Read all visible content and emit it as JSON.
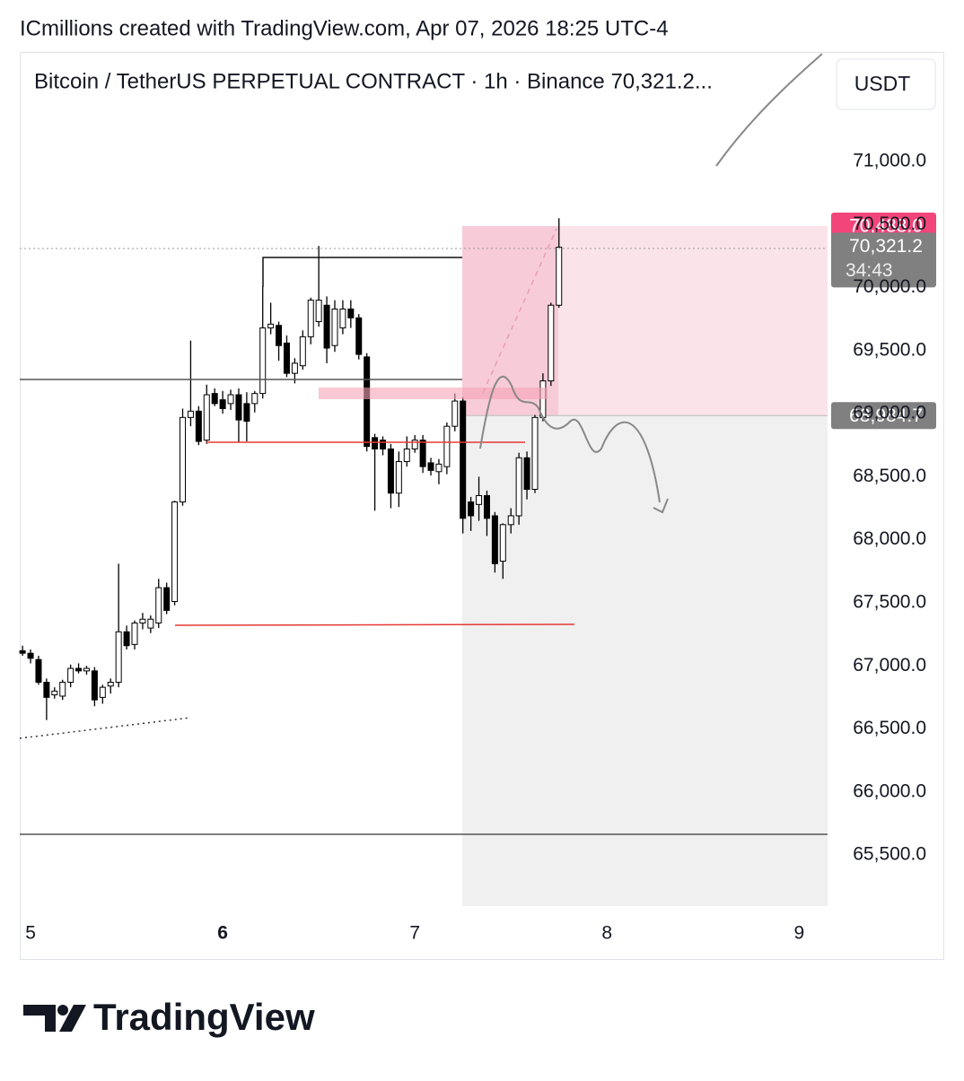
{
  "header": {
    "credit": "ICmillions created with TradingView.com, Apr 07, 2026 18:25 UTC-4",
    "logo": "TradingView"
  },
  "chart_data": {
    "type": "candlestick",
    "title": "Bitcoin / TetherUS PERPETUAL CONTRACT · 1h · Binance  70,321.2...",
    "currency": "USDT",
    "x": [
      -1,
      0,
      1,
      2,
      3,
      4,
      5,
      6,
      7,
      8,
      9,
      10,
      11,
      12,
      13,
      14,
      15,
      16,
      17,
      18,
      19,
      20,
      21,
      22,
      23,
      24,
      25,
      26,
      27,
      28,
      29,
      30,
      31,
      32,
      33,
      34,
      35,
      36,
      37,
      38,
      39,
      40,
      41,
      42,
      43,
      44,
      45,
      46,
      47,
      48,
      49,
      50,
      51,
      52,
      53,
      54,
      55,
      56,
      57,
      58,
      59,
      60,
      61,
      62,
      63,
      64,
      65,
      66
    ],
    "open": [
      67120,
      67100,
      67050,
      66870,
      66770,
      66760,
      66870,
      66980,
      66960,
      66960,
      66750,
      66840,
      66870,
      67270,
      67170,
      67340,
      67300,
      67340,
      67620,
      67510,
      68300,
      68970,
      69020,
      68790,
      69160,
      69110,
      69080,
      69150,
      69080,
      69080,
      69160,
      69680,
      69700,
      69560,
      69320,
      69380,
      69610,
      69730,
      69860,
      69540,
      69680,
      69830,
      69760,
      69450,
      68810,
      68790,
      68720,
      68370,
      68620,
      68720,
      68790,
      68610,
      68540,
      68580,
      68900,
      69100,
      68300,
      68280,
      68350,
      68190,
      67830,
      68120,
      68190,
      68650,
      68400,
      68970,
      69260,
      69860
    ],
    "high": [
      67160,
      67130,
      67080,
      66900,
      66830,
      66890,
      67010,
      67020,
      67000,
      66990,
      66850,
      66900,
      67810,
      67320,
      67360,
      67420,
      67400,
      67690,
      67660,
      68310,
      69040,
      69580,
      69060,
      69230,
      69200,
      69180,
      69190,
      69200,
      69170,
      69180,
      70010,
      69880,
      69730,
      69620,
      69440,
      69660,
      69920,
      70330,
      69930,
      69900,
      69900,
      69900,
      69790,
      69480,
      68840,
      68820,
      68760,
      68700,
      68820,
      68830,
      68830,
      68650,
      68640,
      68930,
      69160,
      69130,
      68340,
      68500,
      68390,
      68220,
      68130,
      68250,
      68690,
      68700,
      68990,
      69320,
      69880,
      70550
    ],
    "low": [
      67080,
      67020,
      66850,
      66570,
      66740,
      66730,
      66830,
      66940,
      66930,
      66680,
      66700,
      66780,
      66830,
      67130,
      67130,
      67290,
      67260,
      67300,
      67410,
      67480,
      68270,
      68900,
      68750,
      68760,
      69060,
      69000,
      69030,
      68770,
      68780,
      69010,
      69120,
      69630,
      69420,
      69290,
      69240,
      69350,
      69550,
      69690,
      69400,
      69490,
      69630,
      69680,
      69430,
      68700,
      68230,
      68670,
      68250,
      68260,
      68580,
      68690,
      68530,
      68510,
      68440,
      68520,
      68860,
      68050,
      68070,
      68150,
      68030,
      67740,
      67690,
      68050,
      68120,
      68320,
      68370,
      68940,
      69220,
      69840
    ],
    "close": [
      67100,
      67060,
      66870,
      66750,
      66800,
      66870,
      66980,
      66960,
      66980,
      66730,
      66830,
      66870,
      67270,
      67160,
      67340,
      67370,
      67370,
      67620,
      67440,
      68300,
      68970,
      69020,
      68780,
      69150,
      69080,
      69040,
      69150,
      68950,
      68940,
      69160,
      69680,
      69710,
      69540,
      69320,
      69400,
      69610,
      69900,
      69900,
      69520,
      69830,
      69830,
      69760,
      69470,
      68740,
      68720,
      68720,
      68370,
      68620,
      68720,
      68790,
      68580,
      68550,
      68600,
      68900,
      69100,
      68170,
      68190,
      68350,
      68170,
      67810,
      68120,
      68190,
      68650,
      68400,
      68970,
      69260,
      69860,
      70320
    ],
    "xlim": [
      -1.35,
      99.55
    ],
    "xticks": [
      {
        "value": 0,
        "label": "5"
      },
      {
        "value": 24,
        "label": "6"
      },
      {
        "value": 48,
        "label": "7"
      },
      {
        "value": 72,
        "label": "8"
      },
      {
        "value": 96,
        "label": "9"
      }
    ],
    "ylim": [
      65095,
      71868
    ],
    "yticks": [
      {
        "value": 65500,
        "label": "65,500.0"
      },
      {
        "value": 66000,
        "label": "66,000.0"
      },
      {
        "value": 66500,
        "label": "66,500.0"
      },
      {
        "value": 67000,
        "label": "67,000.0"
      },
      {
        "value": 67500,
        "label": "67,500.0"
      },
      {
        "value": 68000,
        "label": "68,000.0"
      },
      {
        "value": 68500,
        "label": "68,500.0"
      },
      {
        "value": 69000,
        "label": "69,000.0"
      },
      {
        "value": 69500,
        "label": "69,500.0"
      },
      {
        "value": 70000,
        "label": "70,000.0"
      },
      {
        "value": 70500,
        "label": "70,500.0"
      },
      {
        "value": 71000,
        "label": "71,000.0"
      }
    ],
    "grid": false,
    "up_color": "#ffffff",
    "down_color": "#000000",
    "last_price": {
      "value": 70321.2,
      "label": "70,321.2"
    },
    "countdown": "34:43",
    "position": {
      "stop": {
        "value": 70488,
        "label": "70,488.0"
      },
      "entry": {
        "value": 68984.7,
        "label": "68,984.7"
      }
    }
  }
}
